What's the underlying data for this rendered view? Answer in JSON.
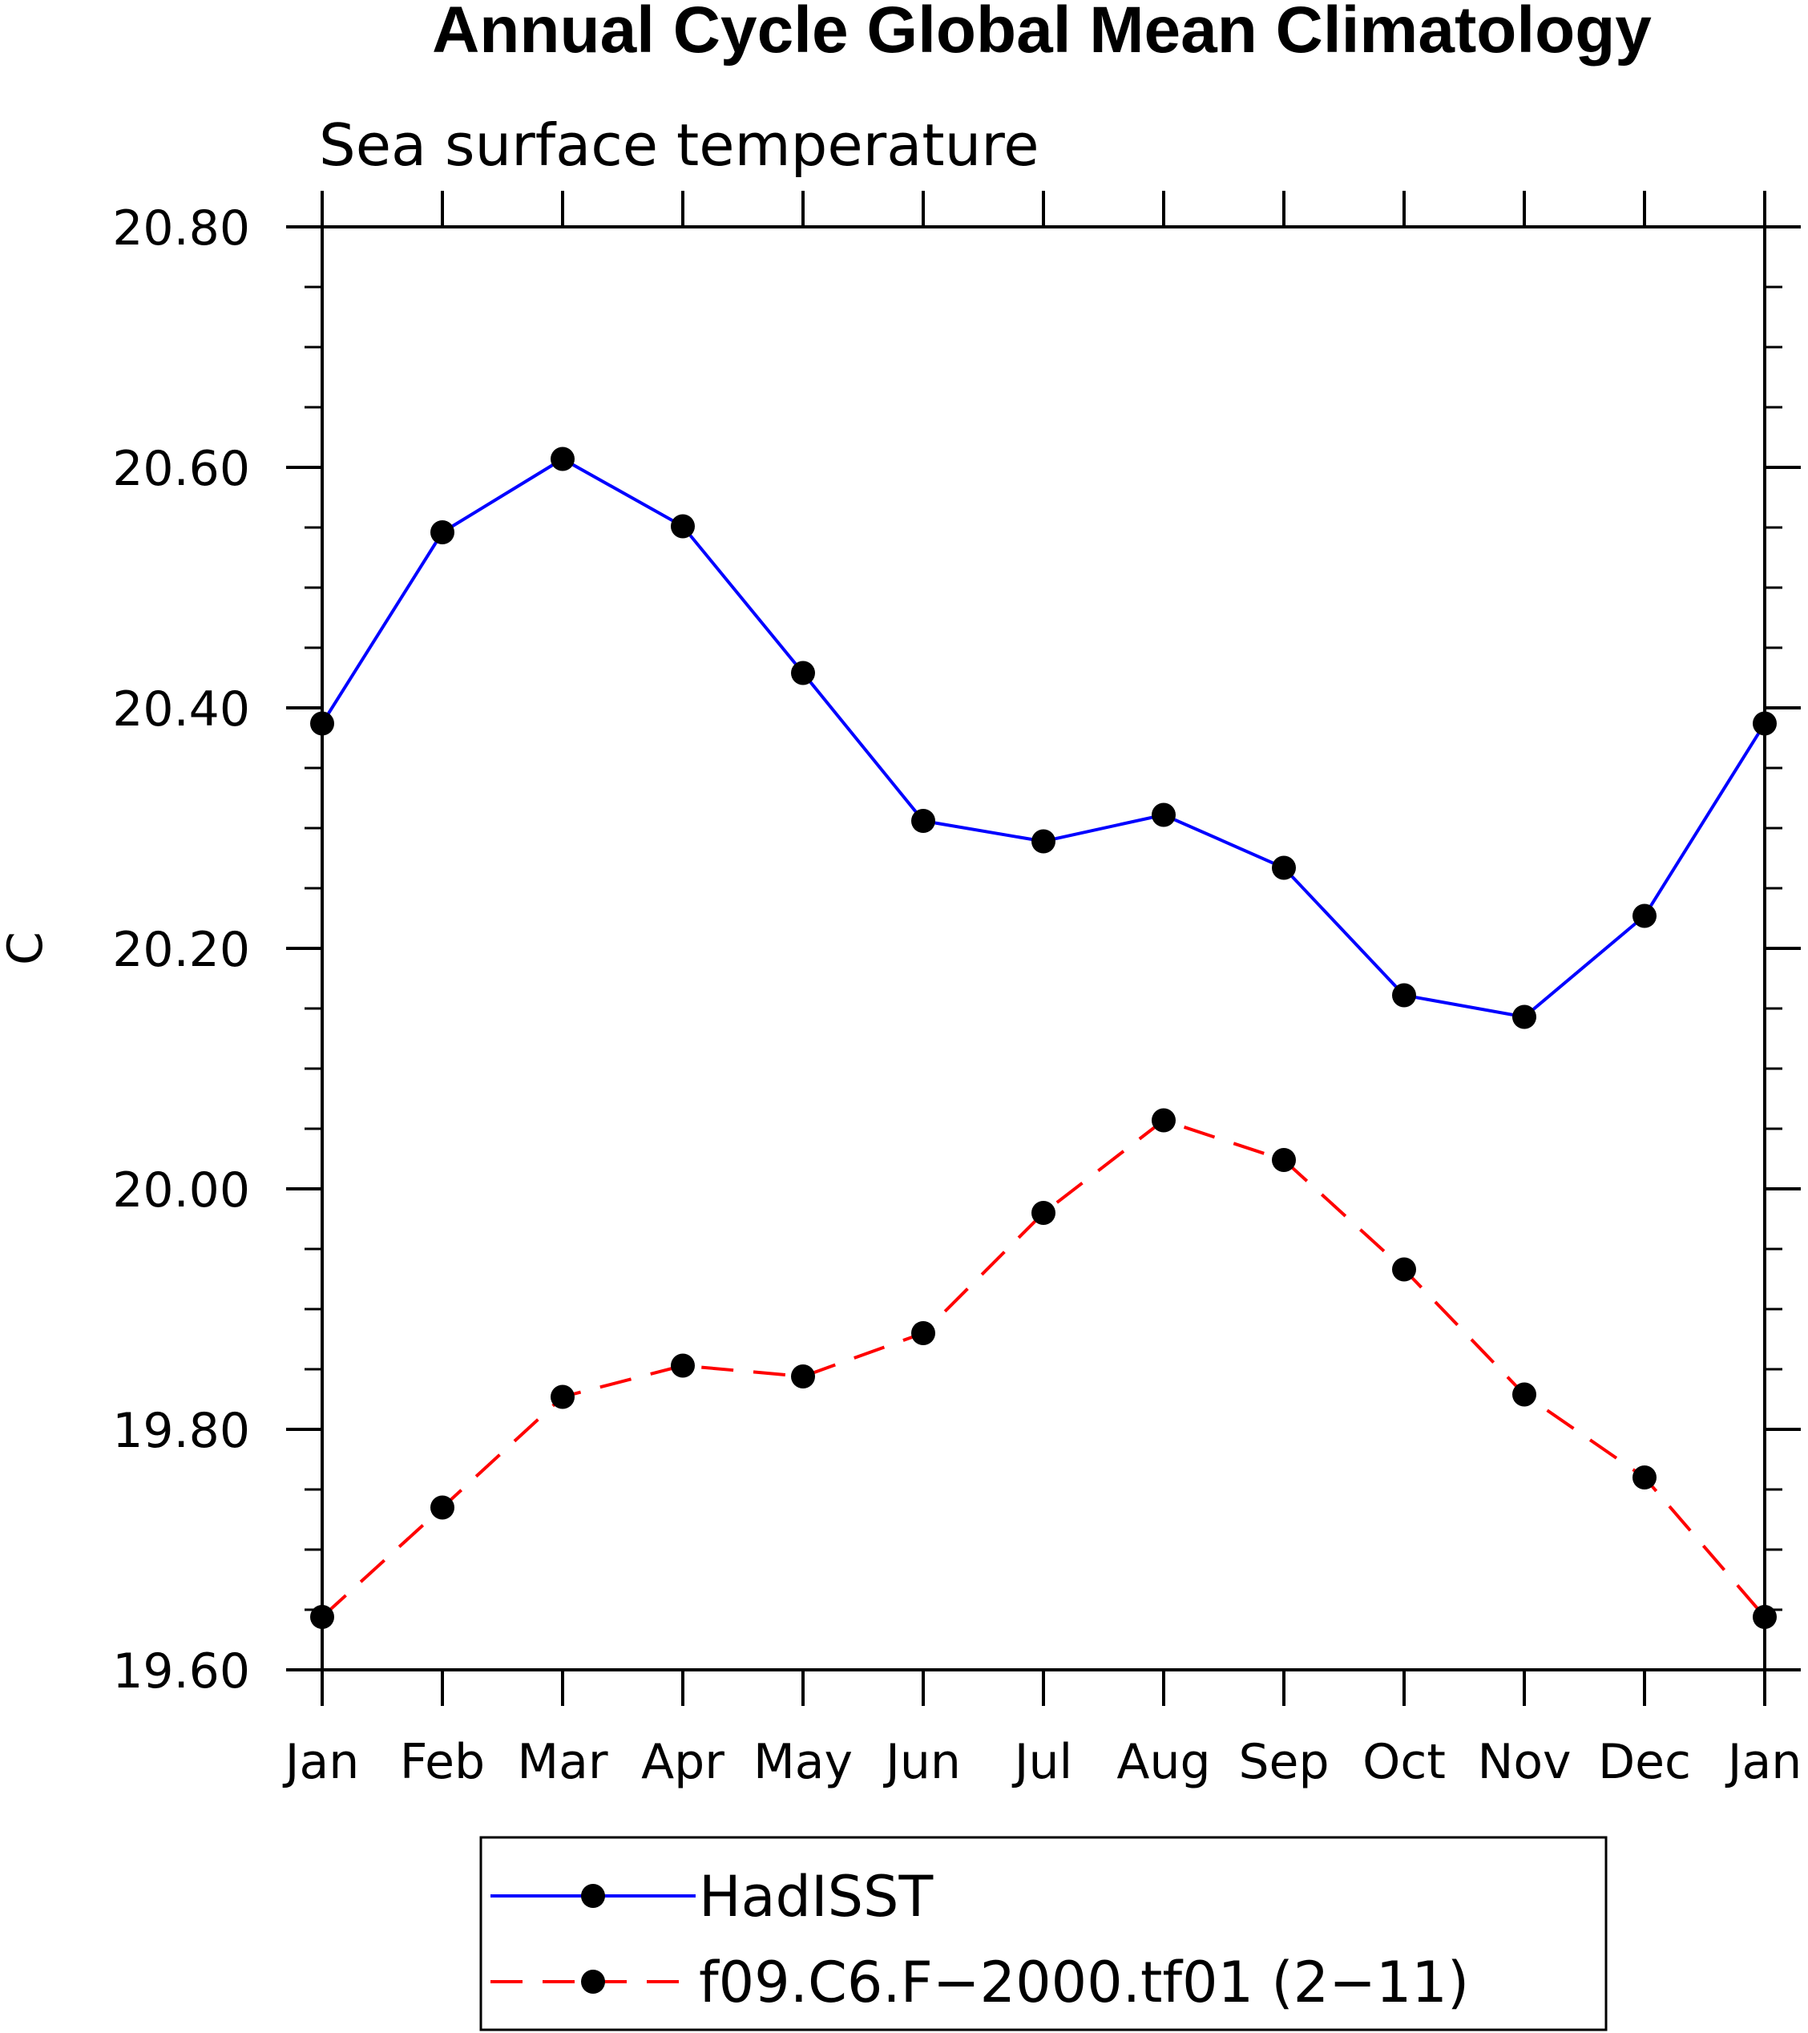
{
  "chart_data": {
    "type": "line",
    "title": "Annual Cycle Global Mean Climatology",
    "subtitle": "Sea surface temperature",
    "ylabel": "C",
    "xlabel": "",
    "categories": [
      "Jan",
      "Feb",
      "Mar",
      "Apr",
      "May",
      "Jun",
      "Jul",
      "Aug",
      "Sep",
      "Oct",
      "Nov",
      "Dec",
      "Jan"
    ],
    "ylim": [
      19.6,
      20.8
    ],
    "yticks": [
      "19.60",
      "19.80",
      "20.00",
      "20.20",
      "20.40",
      "20.60",
      "20.80"
    ],
    "ytick_values": [
      19.6,
      19.8,
      20.0,
      20.2,
      20.4,
      20.6,
      20.8
    ],
    "y_minor_step": 0.05,
    "legend_position": "bottom",
    "series": [
      {
        "name": "HadISST",
        "color": "#0000ff",
        "dash": "solid",
        "marker": "filled-circle",
        "values": [
          20.387,
          20.546,
          20.607,
          20.551,
          20.429,
          20.306,
          20.289,
          20.311,
          20.267,
          20.161,
          20.143,
          20.227,
          20.387
        ]
      },
      {
        "name": "f09.C6.F−2000.tf01 (2−11)",
        "color": "#ff0000",
        "dash": "dashed",
        "marker": "filled-circle",
        "values": [
          19.644,
          19.735,
          19.827,
          19.853,
          19.844,
          19.88,
          19.98,
          20.057,
          20.024,
          19.933,
          19.829,
          19.76,
          19.644
        ]
      }
    ]
  }
}
